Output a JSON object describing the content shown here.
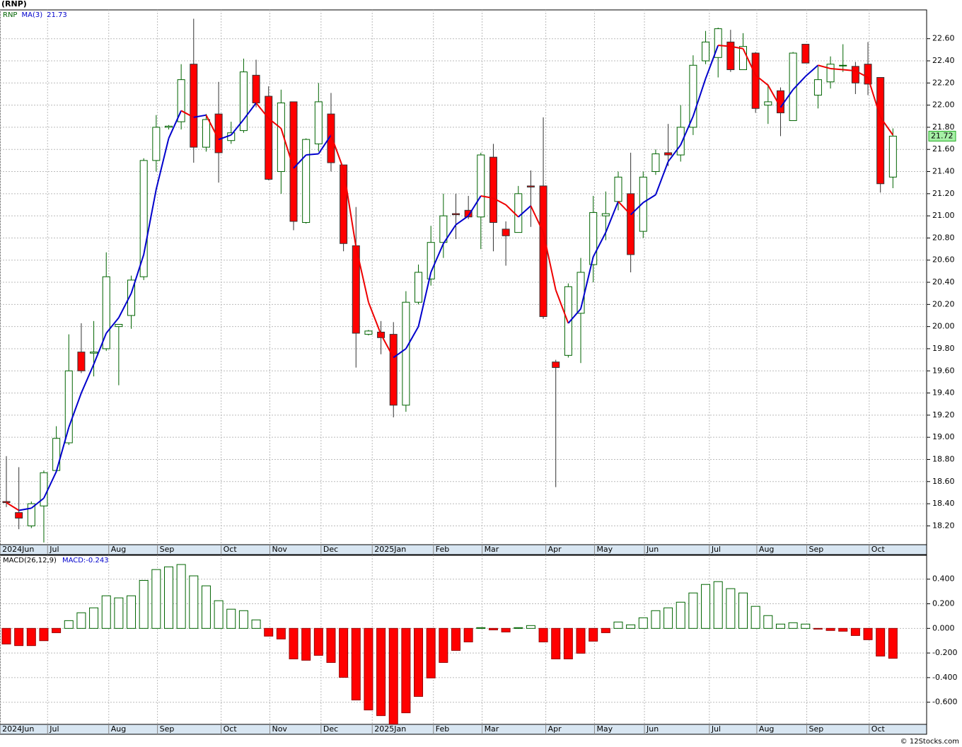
{
  "title": "(RNP)",
  "credit": "© 12Stocks.com",
  "chart_data": [
    {
      "type": "candlestick",
      "symbol": "RNP",
      "ma_label": "MA(3)",
      "grid": true,
      "up_color": "#006400",
      "down_color": "#ff0000",
      "ma_up_color": "#0000cc",
      "ma_down_color": "#ee0000",
      "open": [
        18.42,
        18.32,
        18.2,
        18.38,
        18.7,
        18.95,
        19.77,
        19.76,
        19.8,
        20.0,
        20.1,
        20.45,
        21.5,
        21.8,
        21.85,
        22.37,
        21.62,
        21.92,
        21.68,
        21.77,
        22.27,
        22.08,
        21.4,
        22.03,
        20.94,
        21.65,
        21.92,
        21.46,
        20.73,
        19.93,
        19.95,
        19.93,
        19.29,
        20.22,
        20.43,
        20.76,
        21.02,
        21.05,
        20.99,
        21.53,
        20.88,
        20.85,
        21.27,
        21.27,
        19.68,
        19.74,
        20.12,
        20.56,
        21.0,
        21.13,
        21.2,
        20.86,
        21.4,
        21.57,
        21.55,
        21.8,
        22.4,
        22.43,
        22.57,
        22.32,
        22.47,
        22.0,
        22.13,
        21.86,
        22.55,
        22.09,
        22.21,
        22.36,
        22.35,
        22.37,
        22.25,
        21.35
      ],
      "high": [
        18.83,
        18.73,
        18.42,
        18.7,
        19.1,
        19.93,
        20.03,
        20.05,
        20.67,
        20.02,
        20.46,
        21.52,
        21.91,
        21.82,
        22.37,
        22.78,
        21.92,
        22.21,
        21.85,
        22.42,
        22.41,
        22.17,
        22.14,
        22.03,
        21.7,
        22.2,
        22.11,
        21.46,
        21.08,
        19.97,
        20.05,
        20.04,
        20.32,
        20.56,
        20.91,
        21.2,
        21.2,
        21.18,
        21.57,
        21.65,
        20.95,
        21.27,
        21.41,
        21.89,
        19.7,
        20.39,
        20.62,
        21.18,
        21.22,
        21.4,
        21.57,
        21.4,
        21.6,
        21.83,
        22.0,
        22.45,
        22.67,
        22.7,
        22.68,
        22.65,
        22.48,
        22.19,
        22.16,
        22.48,
        22.55,
        22.35,
        22.44,
        22.55,
        22.39,
        22.57,
        22.25,
        21.79
      ],
      "low": [
        18.37,
        18.17,
        18.18,
        18.05,
        18.68,
        18.93,
        19.58,
        19.55,
        19.78,
        19.47,
        19.98,
        20.42,
        21.4,
        21.78,
        21.78,
        21.48,
        21.58,
        21.3,
        21.65,
        21.75,
        21.98,
        21.32,
        21.2,
        20.87,
        20.93,
        21.58,
        21.4,
        20.68,
        19.63,
        19.92,
        19.75,
        19.18,
        19.23,
        20.2,
        20.37,
        20.62,
        20.79,
        20.97,
        20.7,
        20.68,
        20.55,
        20.85,
        20.9,
        20.07,
        18.55,
        19.72,
        19.67,
        20.4,
        20.78,
        21.05,
        20.49,
        20.8,
        21.37,
        21.45,
        21.49,
        21.73,
        22.37,
        22.25,
        22.3,
        22.35,
        21.93,
        21.83,
        21.72,
        21.86,
        22.38,
        21.97,
        22.15,
        22.3,
        22.1,
        22.09,
        21.21,
        21.25
      ],
      "close": [
        18.41,
        18.27,
        18.4,
        18.68,
        18.99,
        19.6,
        19.6,
        19.77,
        20.45,
        20.02,
        20.42,
        21.5,
        21.8,
        21.81,
        22.23,
        21.62,
        21.87,
        21.57,
        21.75,
        22.3,
        22.02,
        21.33,
        22.02,
        20.95,
        21.69,
        22.03,
        21.48,
        20.75,
        19.94,
        19.96,
        19.9,
        19.29,
        20.22,
        20.49,
        20.76,
        21.0,
        21.01,
        20.99,
        21.55,
        20.94,
        20.82,
        21.2,
        21.26,
        20.09,
        19.63,
        20.36,
        20.49,
        21.03,
        21.02,
        21.35,
        20.65,
        21.35,
        21.56,
        21.55,
        21.8,
        22.36,
        22.57,
        22.69,
        22.32,
        22.53,
        21.97,
        22.03,
        21.93,
        22.47,
        22.38,
        22.23,
        22.37,
        22.36,
        22.2,
        22.19,
        21.29,
        21.72
      ],
      "ma": [
        18.41,
        18.34,
        18.36,
        18.45,
        18.69,
        19.09,
        19.4,
        19.66,
        19.94,
        20.08,
        20.3,
        20.65,
        21.24,
        21.7,
        21.95,
        21.89,
        21.91,
        21.69,
        21.73,
        21.87,
        22.02,
        21.88,
        21.79,
        21.43,
        21.55,
        21.56,
        21.73,
        21.42,
        20.72,
        20.22,
        19.93,
        19.72,
        19.8,
        20.0,
        20.49,
        20.75,
        20.92,
        21.0,
        21.18,
        21.16,
        21.1,
        20.99,
        21.09,
        20.85,
        20.33,
        20.03,
        20.16,
        20.63,
        20.85,
        21.13,
        21.01,
        21.12,
        21.19,
        21.49,
        21.64,
        21.9,
        22.24,
        22.54,
        22.53,
        22.51,
        22.27,
        22.18,
        21.98,
        22.14,
        22.26,
        22.36,
        22.33,
        22.32,
        22.31,
        22.25,
        21.89,
        21.73
      ],
      "ylim": [
        18.03,
        22.86
      ],
      "yticks": [
        {
          "value": 18.2,
          "label": "18.20"
        },
        {
          "value": 18.4,
          "label": "18.40"
        },
        {
          "value": 18.6,
          "label": "18.60"
        },
        {
          "value": 18.8,
          "label": "18.80"
        },
        {
          "value": 19.0,
          "label": "19.00"
        },
        {
          "value": 19.2,
          "label": "19.20"
        },
        {
          "value": 19.4,
          "label": "19.40"
        },
        {
          "value": 19.6,
          "label": "19.60"
        },
        {
          "value": 19.8,
          "label": "19.80"
        },
        {
          "value": 20.0,
          "label": "20.00"
        },
        {
          "value": 20.2,
          "label": "20.20"
        },
        {
          "value": 20.4,
          "label": "20.40"
        },
        {
          "value": 20.6,
          "label": "20.60"
        },
        {
          "value": 20.8,
          "label": "20.80"
        },
        {
          "value": 21.0,
          "label": "21.00"
        },
        {
          "value": 21.2,
          "label": "21.20"
        },
        {
          "value": 21.4,
          "label": "21.40"
        },
        {
          "value": 21.6,
          "label": "21.60"
        },
        {
          "value": 21.8,
          "label": "21.80"
        },
        {
          "value": 22.0,
          "label": "22.00"
        },
        {
          "value": 22.2,
          "label": "22.20"
        },
        {
          "value": 22.4,
          "label": "22.40"
        },
        {
          "value": 22.6,
          "label": "22.60"
        }
      ],
      "xlim": [
        -0.51,
        73.7
      ],
      "xticks": [
        {
          "value": -0.5,
          "label": "2024Jun"
        },
        {
          "value": 3.3,
          "label": "Jul"
        },
        {
          "value": 8.2,
          "label": "Aug"
        },
        {
          "value": 12.1,
          "label": "Sep"
        },
        {
          "value": 17.2,
          "label": "Oct"
        },
        {
          "value": 21.1,
          "label": "Nov"
        },
        {
          "value": 25.2,
          "label": "Dec"
        },
        {
          "value": 29.3,
          "label": "2025Jan"
        },
        {
          "value": 34.2,
          "label": "Feb"
        },
        {
          "value": 38.1,
          "label": "Mar"
        },
        {
          "value": 43.2,
          "label": "Apr"
        },
        {
          "value": 47.1,
          "label": "May"
        },
        {
          "value": 51.1,
          "label": "Jun"
        },
        {
          "value": 56.3,
          "label": "Jul"
        },
        {
          "value": 60.1,
          "label": "Aug"
        },
        {
          "value": 64.1,
          "label": "Sep"
        },
        {
          "value": 69.1,
          "label": "Oct"
        }
      ]
    },
    {
      "type": "bar",
      "title": "MACD(26,12,9)",
      "value_prefix": "MACD:",
      "grid": true,
      "up_color": "#006400",
      "down_color": "#ff0000",
      "values": [
        -0.127,
        -0.14,
        -0.14,
        -0.1,
        -0.035,
        0.063,
        0.127,
        0.167,
        0.265,
        0.248,
        0.265,
        0.39,
        0.478,
        0.5,
        0.519,
        0.427,
        0.346,
        0.225,
        0.156,
        0.144,
        0.069,
        -0.063,
        -0.086,
        -0.248,
        -0.259,
        -0.219,
        -0.277,
        -0.398,
        -0.582,
        -0.663,
        -0.709,
        -0.778,
        -0.686,
        -0.553,
        -0.403,
        -0.277,
        -0.179,
        -0.11,
        0.006,
        -0.012,
        -0.029,
        0.006,
        0.023,
        -0.11,
        -0.248,
        -0.248,
        -0.202,
        -0.104,
        -0.035,
        0.052,
        0.029,
        0.086,
        0.144,
        0.167,
        0.213,
        0.288,
        0.357,
        0.38,
        0.323,
        0.288,
        0.179,
        0.104,
        0.035,
        0.046,
        0.035,
        -0.006,
        -0.017,
        -0.023,
        -0.058,
        -0.092,
        -0.225,
        -0.243
      ],
      "ylim": [
        -0.78,
        0.594
      ],
      "yticks": [
        {
          "value": -0.6,
          "label": "-0.600"
        },
        {
          "value": -0.4,
          "label": "-0.400"
        },
        {
          "value": -0.2,
          "label": "-0.200"
        },
        {
          "value": 0,
          "label": "0.000"
        },
        {
          "value": 0.2,
          "label": "0.200"
        },
        {
          "value": 0.4,
          "label": "0.400"
        }
      ],
      "xlim": [
        -0.51,
        73.7
      ],
      "xticks": [
        {
          "value": -0.5,
          "label": "2024Jun"
        },
        {
          "value": 3.3,
          "label": "Jul"
        },
        {
          "value": 8.2,
          "label": "Aug"
        },
        {
          "value": 12.1,
          "label": "Sep"
        },
        {
          "value": 17.2,
          "label": "Oct"
        },
        {
          "value": 21.1,
          "label": "Nov"
        },
        {
          "value": 25.2,
          "label": "Dec"
        },
        {
          "value": 29.3,
          "label": "2025Jan"
        },
        {
          "value": 34.2,
          "label": "Feb"
        },
        {
          "value": 38.1,
          "label": "Mar"
        },
        {
          "value": 43.2,
          "label": "Apr"
        },
        {
          "value": 47.1,
          "label": "May"
        },
        {
          "value": 51.1,
          "label": "Jun"
        },
        {
          "value": 56.3,
          "label": "Jul"
        },
        {
          "value": 60.1,
          "label": "Aug"
        },
        {
          "value": 64.1,
          "label": "Sep"
        },
        {
          "value": 69.1,
          "label": "Oct"
        }
      ]
    }
  ]
}
